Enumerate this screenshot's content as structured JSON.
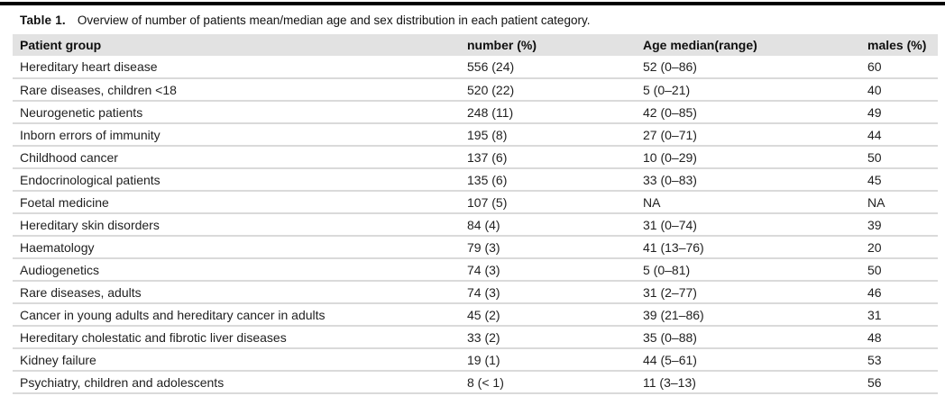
{
  "table": {
    "caption_label": "Table 1.",
    "caption_text": "Overview of number of patients mean/median age and sex distribution in each patient category.",
    "columns": [
      "Patient group",
      "number (%)",
      "Age median(range)",
      "males (%)"
    ],
    "rows": [
      [
        "Hereditary heart disease",
        "556 (24)",
        "52 (0–86)",
        "60"
      ],
      [
        "Rare diseases, children <18",
        "520 (22)",
        "5 (0–21)",
        "40"
      ],
      [
        "Neurogenetic patients",
        "248 (11)",
        "42 (0–85)",
        "49"
      ],
      [
        "Inborn errors of immunity",
        "195 (8)",
        "27 (0–71)",
        "44"
      ],
      [
        "Childhood cancer",
        "137 (6)",
        "10 (0–29)",
        "50"
      ],
      [
        "Endocrinological patients",
        "135 (6)",
        "33 (0–83)",
        "45"
      ],
      [
        "Foetal medicine",
        "107 (5)",
        "NA",
        "NA"
      ],
      [
        "Hereditary skin disorders",
        "84 (4)",
        "31 (0–74)",
        "39"
      ],
      [
        "Haematology",
        "79 (3)",
        "41 (13–76)",
        "20"
      ],
      [
        "Audiogenetics",
        "74 (3)",
        "5 (0–81)",
        "50"
      ],
      [
        "Rare diseases, adults",
        "74 (3)",
        "31 (2–77)",
        "46"
      ],
      [
        "Cancer in young adults and hereditary cancer in adults",
        "45 (2)",
        "39 (21–86)",
        "31"
      ],
      [
        "Hereditary cholestatic and fibrotic liver diseases",
        "33 (2)",
        "35 (0–88)",
        "48"
      ],
      [
        "Kidney failure",
        "19 (1)",
        "44 (5–61)",
        "53"
      ],
      [
        "Psychiatry, children and adolescents",
        "8 (< 1)",
        "11 (3–13)",
        "56"
      ]
    ],
    "colors": {
      "top_rule": "#000000",
      "header_bg": "#e2e2e2",
      "row_divider": "#dadada",
      "text": "#1b1b1b"
    }
  }
}
